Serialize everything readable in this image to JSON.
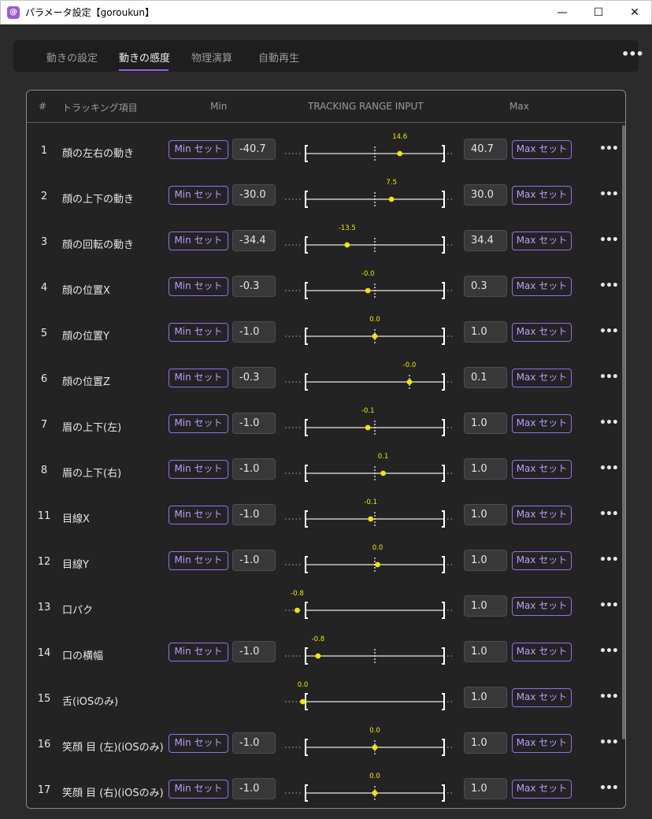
{
  "window": {
    "icon_glyph": "@",
    "title": "パラメータ設定【goroukun】",
    "minimize_glyph": "—",
    "maximize_glyph": "☐",
    "close_glyph": "✕"
  },
  "tabs": [
    {
      "label": "動きの設定",
      "active": false
    },
    {
      "label": "動きの感度",
      "active": true
    },
    {
      "label": "物理演算",
      "active": false
    },
    {
      "label": "自動再生",
      "active": false
    }
  ],
  "tabs_more": "•••",
  "table": {
    "headers": {
      "num": "#",
      "item": "トラッキング項目",
      "min": "Min",
      "range": "TRACKING RANGE INPUT",
      "max": "Max"
    },
    "min_button_label": "Min セット",
    "max_button_label": "Max セット",
    "row_more": "•••",
    "rows": [
      {
        "num": "1",
        "label": "顔の左右の動き",
        "min": "-40.7",
        "max": "40.7",
        "has_min": true,
        "current": "14.6",
        "center": 0.5,
        "pos": 0.68
      },
      {
        "num": "2",
        "label": "顔の上下の動き",
        "min": "-30.0",
        "max": "30.0",
        "has_min": true,
        "current": "7.5",
        "center": 0.5,
        "pos": 0.62
      },
      {
        "num": "3",
        "label": "顔の回転の動き",
        "min": "-34.4",
        "max": "34.4",
        "has_min": true,
        "current": "-13.5",
        "center": 0.5,
        "pos": 0.3
      },
      {
        "num": "4",
        "label": "顔の位置X",
        "min": "-0.3",
        "max": "0.3",
        "has_min": true,
        "current": "-0.0",
        "center": 0.5,
        "pos": 0.45
      },
      {
        "num": "5",
        "label": "顔の位置Y",
        "min": "-1.0",
        "max": "1.0",
        "has_min": true,
        "current": "0.0",
        "center": 0.5,
        "pos": 0.5
      },
      {
        "num": "6",
        "label": "顔の位置Z",
        "min": "-0.3",
        "max": "0.1",
        "has_min": true,
        "current": "-0.0",
        "center": 0.75,
        "pos": 0.75
      },
      {
        "num": "7",
        "label": "眉の上下(左)",
        "min": "-1.0",
        "max": "1.0",
        "has_min": true,
        "current": "-0.1",
        "center": 0.5,
        "pos": 0.45
      },
      {
        "num": "8",
        "label": "眉の上下(右)",
        "min": "-1.0",
        "max": "1.0",
        "has_min": true,
        "current": "0.1",
        "center": 0.5,
        "pos": 0.56
      },
      {
        "num": "11",
        "label": "目線X",
        "min": "-1.0",
        "max": "1.0",
        "has_min": true,
        "current": "-0.1",
        "center": 0.5,
        "pos": 0.47
      },
      {
        "num": "12",
        "label": "目線Y",
        "min": "-1.0",
        "max": "1.0",
        "has_min": true,
        "current": "0.0",
        "center": 0.5,
        "pos": 0.52
      },
      {
        "num": "13",
        "label": "口パク",
        "min": "",
        "max": "1.0",
        "has_min": false,
        "current": "-0.8",
        "center": null,
        "pos": -0.06
      },
      {
        "num": "14",
        "label": "口の横幅",
        "min": "-1.0",
        "max": "1.0",
        "has_min": true,
        "current": "-0.8",
        "center": 0.5,
        "pos": 0.09
      },
      {
        "num": "15",
        "label": "舌(iOSのみ)",
        "min": "",
        "max": "1.0",
        "has_min": false,
        "current": "0.0",
        "center": null,
        "pos": -0.02
      },
      {
        "num": "16",
        "label": "笑顔 目 (左)(iOSのみ)",
        "min": "-1.0",
        "max": "1.0",
        "has_min": true,
        "current": "0.0",
        "center": 0.5,
        "pos": 0.5
      },
      {
        "num": "17",
        "label": "笑顔 目 (右)(iOSのみ)",
        "min": "-1.0",
        "max": "1.0",
        "has_min": true,
        "current": "0.0",
        "center": 0.5,
        "pos": 0.5
      }
    ]
  },
  "colors": {
    "accent": "#9b5cf2",
    "knob": "#f2e600",
    "track": "#c8c8c8"
  }
}
